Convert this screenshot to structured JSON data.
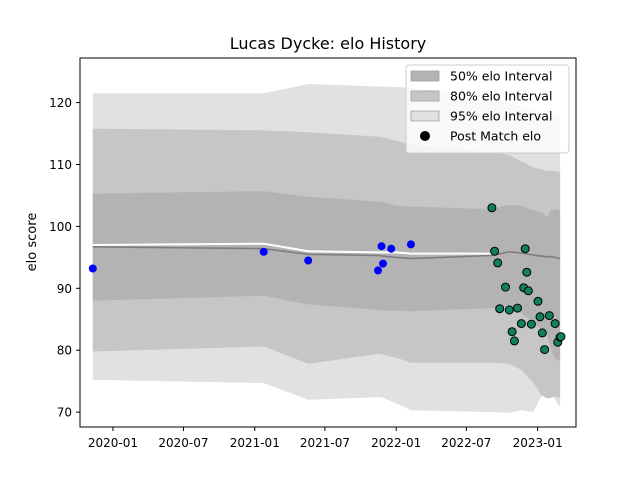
{
  "chart_data": {
    "type": "line",
    "title": "Lucas Dycke: elo History",
    "xlabel": "",
    "ylabel": "elo score",
    "xlim": [
      "2019-10-08",
      "2023-04-10"
    ],
    "ylim": [
      67.6,
      127.2
    ],
    "x_ticks": [
      "2020-01",
      "2020-07",
      "2021-01",
      "2021-07",
      "2022-01",
      "2022-07",
      "2023-01"
    ],
    "y_ticks": [
      70,
      80,
      90,
      100,
      110,
      120
    ],
    "grid": false,
    "legend_position": "upper right",
    "legend": [
      {
        "label": "50% elo Interval",
        "kind": "band",
        "color": "#b4b4b4"
      },
      {
        "label": "80% elo Interval",
        "kind": "band",
        "color": "#c6c6c6"
      },
      {
        "label": "95% elo Interval",
        "kind": "band",
        "color": "#e1e1e1"
      },
      {
        "label": "Post Match elo",
        "kind": "marker",
        "color": "#000000"
      }
    ],
    "bands": {
      "x": [
        "2019-11-10",
        "2021-01-24",
        "2021-05-19",
        "2021-11-15",
        "2021-11-28",
        "2022-01-02",
        "2022-02-08",
        "2022-09-05",
        "2022-10-20",
        "2022-11-20",
        "2022-12-20",
        "2023-01-10",
        "2023-01-25",
        "2023-02-05",
        "2023-02-15",
        "2023-02-28"
      ],
      "p95_upper": [
        121.5,
        121.5,
        123.0,
        122.6,
        122.6,
        122.5,
        122.4,
        121.0,
        120.0,
        119.3,
        118.6,
        118.2,
        118.0,
        117.9,
        117.8,
        117.8
      ],
      "p80_upper": [
        115.8,
        115.5,
        115.2,
        114.5,
        114.4,
        113.8,
        113.2,
        112.0,
        111.5,
        110.5,
        109.6,
        109.2,
        109.0,
        109.0,
        108.9,
        108.8
      ],
      "p50_upper": [
        105.3,
        105.7,
        104.8,
        104.0,
        103.9,
        103.3,
        103.2,
        102.8,
        103.5,
        103.3,
        102.6,
        102.3,
        101.5,
        102.6,
        102.8,
        102.5
      ],
      "center": [
        96.7,
        96.4,
        95.5,
        95.3,
        95.2,
        95.0,
        94.8,
        95.3,
        95.9,
        95.7,
        95.4,
        95.2,
        95.1,
        95.1,
        95.0,
        94.8
      ],
      "p50_lower": [
        88.0,
        88.8,
        87.4,
        86.5,
        86.4,
        86.4,
        86.3,
        86.8,
        87.0,
        86.0,
        84.6,
        83.4,
        82.6,
        80.0,
        78.6,
        78.3
      ],
      "p80_lower": [
        79.8,
        80.6,
        77.8,
        79.4,
        79.3,
        78.8,
        78.0,
        78.0,
        77.8,
        76.8,
        74.8,
        72.8,
        72.2,
        72.3,
        72.5,
        72.3
      ],
      "p95_lower": [
        75.2,
        74.7,
        72.0,
        72.4,
        72.3,
        71.4,
        70.3,
        70.0,
        69.9,
        70.3,
        70.0,
        72.5,
        72.6,
        73.6,
        72.0,
        70.8
      ]
    },
    "mean_line": {
      "x": [
        "2019-11-10",
        "2021-01-24",
        "2021-05-19",
        "2021-11-15",
        "2022-01-02",
        "2022-02-08",
        "2022-09-05"
      ],
      "y": [
        97.0,
        97.2,
        96.0,
        95.8,
        95.8,
        95.6,
        95.6
      ]
    },
    "series": [
      {
        "color": "#0000ff",
        "x": [
          "2019-11-10",
          "2021-01-24",
          "2021-05-19",
          "2021-11-15",
          "2021-11-24",
          "2021-11-28",
          "2021-12-19",
          "2022-02-08"
        ],
        "y": [
          93.2,
          95.9,
          94.5,
          92.9,
          96.8,
          94.0,
          96.4,
          97.1
        ]
      },
      {
        "name": "Post Match elo",
        "color": "#108060",
        "x": [
          "2022-09-05",
          "2022-09-12",
          "2022-09-20",
          "2022-09-25",
          "2022-10-10",
          "2022-10-20",
          "2022-10-27",
          "2022-11-02",
          "2022-11-10",
          "2022-11-20",
          "2022-11-26",
          "2022-11-30",
          "2022-12-04",
          "2022-12-08",
          "2022-12-16",
          "2023-01-02",
          "2023-01-07",
          "2023-01-13",
          "2023-01-19",
          "2023-01-31",
          "2023-02-15",
          "2023-02-22",
          "2023-02-28",
          "2023-03-02"
        ],
        "y": [
          103.0,
          96.0,
          94.1,
          86.7,
          90.2,
          86.5,
          83.0,
          81.5,
          86.8,
          84.3,
          90.1,
          96.4,
          92.6,
          89.6,
          84.2,
          87.9,
          85.4,
          82.8,
          80.1,
          85.6,
          84.3,
          81.3,
          82.1,
          82.2
        ]
      }
    ]
  }
}
